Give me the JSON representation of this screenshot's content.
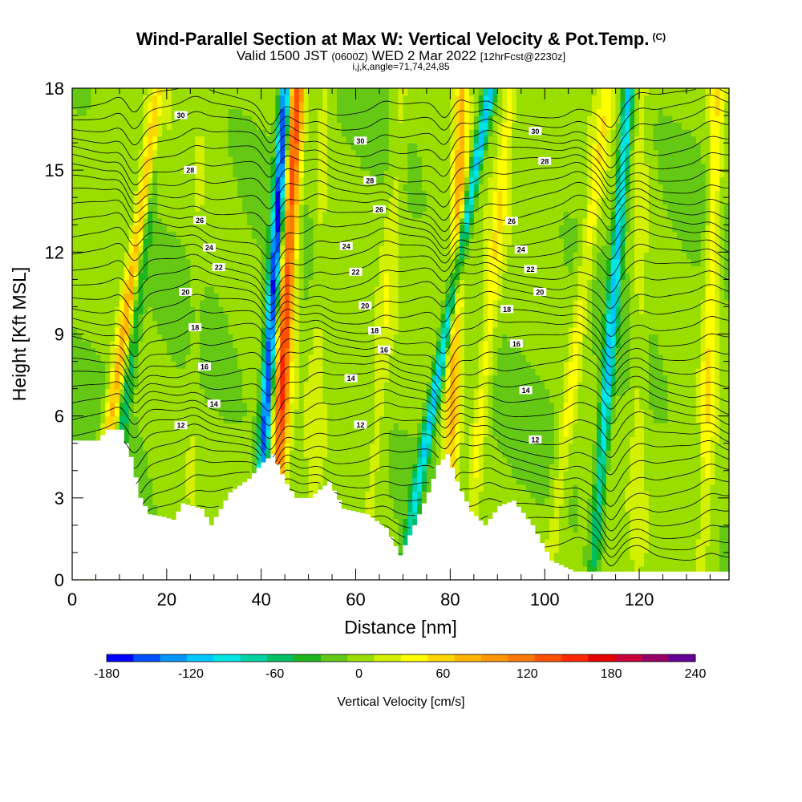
{
  "title": "Wind-Parallel Section at Max W: Vertical Velocity & Pot.Temp.",
  "copyright": "(C)",
  "subtitle": {
    "valid": "Valid 1500 JST",
    "utc": "(0600Z)",
    "date": "WED 2 Mar 2022",
    "fcst": "[12hrFcst@2230z]"
  },
  "subtitle2": "i,j,k,angle=71,74,24,85",
  "chart_data": {
    "type": "heatmap",
    "xlabel": "Distance [nm]",
    "ylabel": "Height [Kft MSL]",
    "xlim": [
      0,
      139
    ],
    "ylim": [
      0,
      18
    ],
    "x_ticks": [
      "0",
      "20",
      "40",
      "60",
      "80",
      "100",
      "120"
    ],
    "y_ticks": [
      "0",
      "3",
      "6",
      "9",
      "12",
      "15",
      "18"
    ],
    "colorbar": {
      "label": "Vertical Velocity [cm/s]",
      "range": [
        -180,
        240
      ],
      "step": 20,
      "ticks": [
        "-180",
        "-120",
        "-60",
        "0",
        "60",
        "120",
        "180",
        "240"
      ],
      "colors": [
        "#0000ff",
        "#0050ff",
        "#0096ff",
        "#00c8ff",
        "#00e6e6",
        "#00d2a0",
        "#00be64",
        "#1eb41e",
        "#64c814",
        "#9ade00",
        "#d2f000",
        "#ffff00",
        "#ffd700",
        "#ffb400",
        "#ff9600",
        "#ff7800",
        "#ff5000",
        "#ff2800",
        "#e60000",
        "#c8003c",
        "#960064",
        "#640096"
      ]
    },
    "updraft_bands": [
      {
        "x": 11,
        "w": 90,
        "shift": 2.5
      },
      {
        "x": 26,
        "w": 10,
        "shift": 0.5
      },
      {
        "x": 45,
        "w": 150,
        "shift": 0.8
      },
      {
        "x": 52,
        "w": 20,
        "shift": 0.5
      },
      {
        "x": 66,
        "w": 25,
        "shift": 1.2
      },
      {
        "x": 81,
        "w": 80,
        "shift": 0.5
      },
      {
        "x": 88,
        "w": 45,
        "shift": 1.5
      },
      {
        "x": 107,
        "w": 45,
        "shift": 2.0
      },
      {
        "x": 120,
        "w": 25,
        "shift": 0.2
      },
      {
        "x": 135,
        "w": 50,
        "shift": 0.5
      }
    ],
    "downdraft_bands": [
      {
        "x": 13,
        "w": -60,
        "shift": 2.0
      },
      {
        "x": 42,
        "w": -170,
        "shift": 1.0
      },
      {
        "x": 79,
        "w": -120,
        "shift": 3.0
      },
      {
        "x": 114,
        "w": -110,
        "shift": 1.2
      }
    ],
    "terrain": [
      [
        0,
        5.1
      ],
      [
        5,
        5.1
      ],
      [
        7,
        5.5
      ],
      [
        10,
        5.5
      ],
      [
        12,
        4.5
      ],
      [
        14,
        3.0
      ],
      [
        16,
        2.4
      ],
      [
        19,
        2.3
      ],
      [
        21,
        2.2
      ],
      [
        23,
        2.8
      ],
      [
        27,
        2.6
      ],
      [
        29,
        2.0
      ],
      [
        33,
        3.2
      ],
      [
        37,
        3.7
      ],
      [
        40,
        4.3
      ],
      [
        42,
        4.6
      ],
      [
        45,
        3.5
      ],
      [
        47,
        3.0
      ],
      [
        50,
        3.0
      ],
      [
        54,
        3.6
      ],
      [
        57,
        2.6
      ],
      [
        62,
        2.4
      ],
      [
        66,
        1.9
      ],
      [
        69,
        0.9
      ],
      [
        72,
        2.0
      ],
      [
        75,
        3.2
      ],
      [
        77,
        4.2
      ],
      [
        79,
        4.6
      ],
      [
        81,
        3.6
      ],
      [
        84,
        2.5
      ],
      [
        87,
        2.0
      ],
      [
        90,
        2.7
      ],
      [
        93,
        2.9
      ],
      [
        97,
        2.0
      ],
      [
        101,
        0.7
      ],
      [
        106,
        0.3
      ],
      [
        139,
        0.3
      ]
    ],
    "theta_contours": [
      {
        "label": "12",
        "base": 5.4
      },
      {
        "label": "14",
        "base": 6.9
      },
      {
        "label": "16",
        "base": 8.2
      },
      {
        "label": "18",
        "base": 9.3
      },
      {
        "label": "20",
        "base": 10.4
      },
      {
        "label": "22",
        "base": 11.5
      },
      {
        "label": "24",
        "base": 12.3
      },
      {
        "label": "26",
        "base": 13.3
      },
      {
        "label": "28",
        "base": 15.0
      },
      {
        "label": "30",
        "base": 16.6
      }
    ]
  }
}
